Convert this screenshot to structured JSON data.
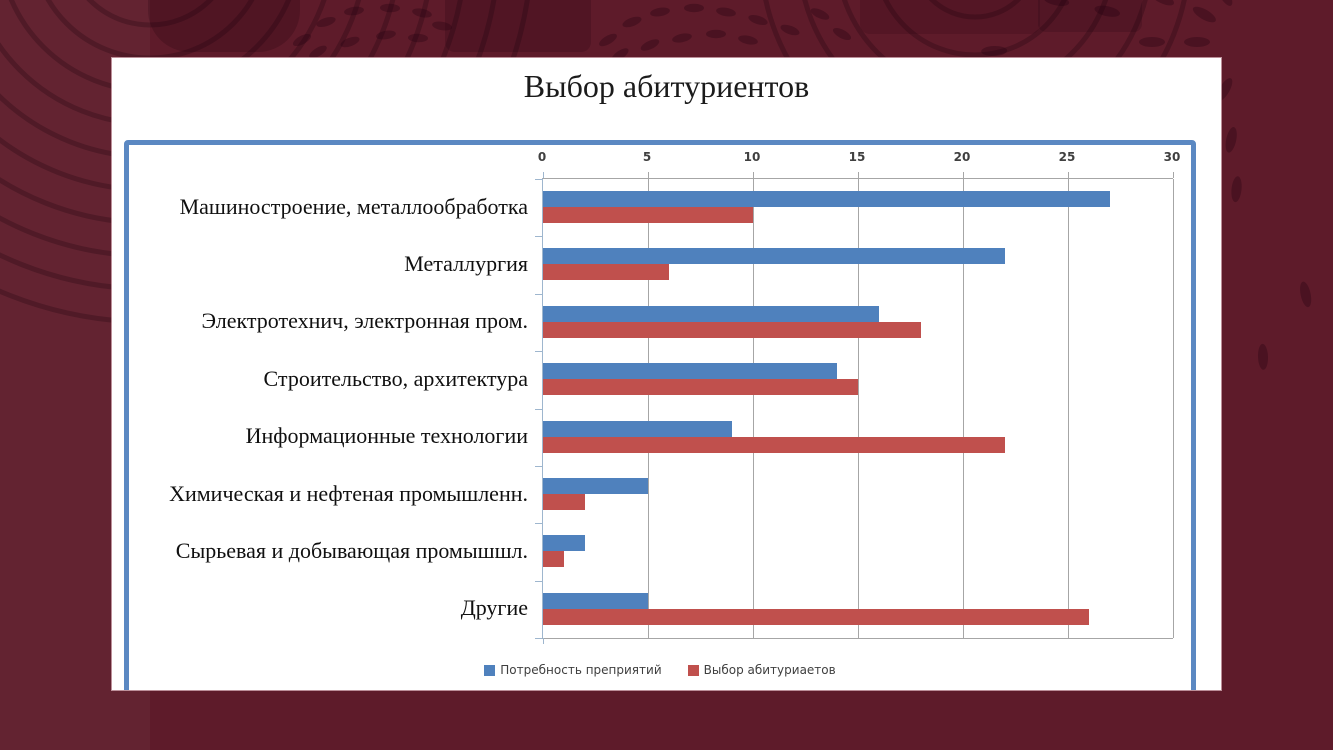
{
  "slide": {
    "title": "Выбор абитуриентов"
  },
  "chart_data": {
    "type": "bar",
    "orientation": "horizontal",
    "title": "Выбор абитуриентов",
    "categories": [
      "Машиностроение, металлообработка",
      "Металлургия",
      "Электротехнич, электронная пром.",
      "Строительство, архитектура",
      "Информационные технологии",
      "Химическая и нефтеная промышленн.",
      "Сырьевая и добывающая промышшл.",
      "Другие"
    ],
    "series": [
      {
        "name": "Потребность преприятий",
        "color": "#4F81BD",
        "values": [
          27,
          22,
          16,
          14,
          9,
          5,
          2,
          5
        ]
      },
      {
        "name": "Выбор абитуриаетов",
        "color": "#C0504D",
        "values": [
          10,
          6,
          18,
          15,
          22,
          2,
          1,
          26
        ]
      }
    ],
    "xlim": [
      0,
      30
    ],
    "xticks": [
      0,
      5,
      10,
      15,
      20,
      25,
      30
    ],
    "grid": "vertical",
    "legend_position": "bottom"
  },
  "colors": {
    "background_maroon": "#5E1B2A",
    "pattern_dark": "#3E0214",
    "slide_white": "#FFFFFF",
    "frame_border_blue": "#5B88C2",
    "gridline_gray": "#A6A6A6",
    "category_axis_blue": "#9EB6CE",
    "series1_blue": "#4F81BD",
    "series2_red": "#C0504D",
    "axis_label_text": "#404040",
    "legend_text": "#3F3F3F",
    "title_text": "#1B1B1B"
  }
}
